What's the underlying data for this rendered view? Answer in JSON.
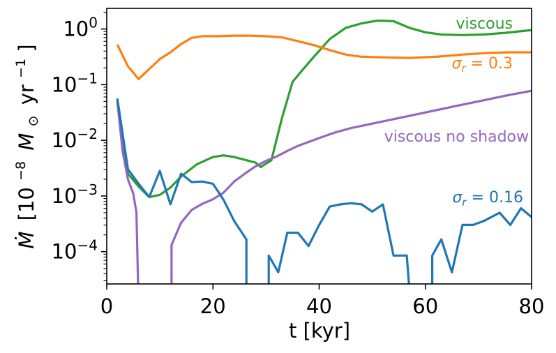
{
  "chart_data": {
    "type": "line",
    "title": "",
    "xlabel": "t [kyr]",
    "ylabel": "Ṁ [10⁻⁸ M⊙ yr⁻¹]",
    "ylabel_parts": {
      "dot": "Ṁ",
      "pre": "[10",
      "exp": "−8",
      "mid": "M",
      "sun": "⊙",
      "unit": "yr",
      "unit_exp": "−1",
      "close": "]"
    },
    "xlim": [
      0,
      80
    ],
    "ylim_log10": [
      -4.58,
      0.37
    ],
    "yscale": "log",
    "x_ticks": [
      {
        "value": 0,
        "label": "0"
      },
      {
        "value": 20,
        "label": "20"
      },
      {
        "value": 40,
        "label": "40"
      },
      {
        "value": 60,
        "label": "60"
      },
      {
        "value": 80,
        "label": "80"
      }
    ],
    "y_ticks": [
      {
        "exp10": 0,
        "base": "10",
        "exp": "0"
      },
      {
        "exp10": -1,
        "base": "10",
        "exp": "−1"
      },
      {
        "exp10": -2,
        "base": "10",
        "exp": "−2"
      },
      {
        "exp10": -3,
        "base": "10",
        "exp": "−3"
      },
      {
        "exp10": -4,
        "base": "10",
        "exp": "−4"
      }
    ],
    "series": [
      {
        "name": "viscous",
        "label": "viscous",
        "color": "#2ca02c",
        "points": [
          [
            2,
            -1.25
          ],
          [
            4,
            -2.6
          ],
          [
            6,
            -2.83
          ],
          [
            8,
            -3.02
          ],
          [
            10,
            -2.98
          ],
          [
            12,
            -2.85
          ],
          [
            14,
            -2.65
          ],
          [
            17,
            -2.43
          ],
          [
            20,
            -2.3
          ],
          [
            22,
            -2.27
          ],
          [
            24,
            -2.3
          ],
          [
            26,
            -2.35
          ],
          [
            28,
            -2.4
          ],
          [
            29,
            -2.48
          ],
          [
            31,
            -2.36
          ],
          [
            33,
            -1.6
          ],
          [
            35,
            -0.95
          ],
          [
            37,
            -0.72
          ],
          [
            39,
            -0.5
          ],
          [
            42,
            -0.18
          ],
          [
            45,
            0.02
          ],
          [
            48,
            0.1
          ],
          [
            51,
            0.15
          ],
          [
            54,
            0.14
          ],
          [
            57,
            0.02
          ],
          [
            60,
            -0.06
          ],
          [
            63,
            -0.1
          ],
          [
            67,
            -0.11
          ],
          [
            71,
            -0.1
          ],
          [
            75,
            -0.07
          ],
          [
            80,
            -0.02
          ]
        ]
      },
      {
        "name": "sigma_r_0.3",
        "label_prefix": "σ",
        "label_sub": "r",
        "label_suffix": " = 0.3",
        "color": "#ff7f0e",
        "points": [
          [
            2,
            -0.28
          ],
          [
            4,
            -0.67
          ],
          [
            6,
            -0.9
          ],
          [
            8,
            -0.72
          ],
          [
            10,
            -0.54
          ],
          [
            12,
            -0.42
          ],
          [
            14,
            -0.27
          ],
          [
            16,
            -0.16
          ],
          [
            18,
            -0.13
          ],
          [
            21,
            -0.13
          ],
          [
            24,
            -0.12
          ],
          [
            27,
            -0.12
          ],
          [
            30,
            -0.13
          ],
          [
            33,
            -0.15
          ],
          [
            36,
            -0.22
          ],
          [
            39,
            -0.29
          ],
          [
            42,
            -0.38
          ],
          [
            45,
            -0.46
          ],
          [
            48,
            -0.5
          ],
          [
            52,
            -0.51
          ],
          [
            57,
            -0.52
          ],
          [
            62,
            -0.5
          ],
          [
            67,
            -0.46
          ],
          [
            72,
            -0.43
          ],
          [
            76,
            -0.42
          ],
          [
            80,
            -0.42
          ]
        ]
      },
      {
        "name": "viscous_no_shadow",
        "label": "viscous no shadow",
        "color": "#9467bd",
        "points": [
          [
            2,
            -1.3
          ],
          [
            3,
            -2.2
          ],
          [
            4,
            -2.7
          ],
          [
            5,
            -2.96
          ],
          [
            5.6,
            -3.3
          ],
          [
            5.9,
            -4.6
          ]
        ],
        "segments": [
          [
            [
              2,
              -1.3
            ],
            [
              3,
              -2.2
            ],
            [
              4,
              -2.7
            ],
            [
              5,
              -2.96
            ],
            [
              5.6,
              -3.3
            ],
            [
              5.9,
              -4.6
            ]
          ],
          [
            [
              12.2,
              -4.6
            ],
            [
              12.2,
              -3.88
            ],
            [
              14,
              -3.48
            ],
            [
              16,
              -3.25
            ],
            [
              18,
              -3.14
            ],
            [
              20,
              -3.06
            ],
            [
              22,
              -2.94
            ],
            [
              24,
              -2.74
            ],
            [
              26,
              -2.6
            ],
            [
              28,
              -2.47
            ],
            [
              30,
              -2.37
            ],
            [
              32,
              -2.29
            ],
            [
              34,
              -2.19
            ],
            [
              36,
              -2.1
            ],
            [
              38,
              -2.03
            ],
            [
              40,
              -1.96
            ],
            [
              43,
              -1.86
            ],
            [
              46,
              -1.78
            ],
            [
              50,
              -1.7
            ],
            [
              54,
              -1.62
            ],
            [
              58,
              -1.54
            ],
            [
              62,
              -1.46
            ],
            [
              66,
              -1.38
            ],
            [
              70,
              -1.3
            ],
            [
              75,
              -1.2
            ],
            [
              80,
              -1.11
            ]
          ]
        ]
      },
      {
        "name": "sigma_r_0.16",
        "label_prefix": "σ",
        "label_sub": "r",
        "label_suffix": " = 0.16",
        "color": "#1f77b4",
        "segments": [
          [
            [
              2,
              -1.25
            ],
            [
              4,
              -2.52
            ],
            [
              6,
              -2.78
            ],
            [
              8,
              -3.02
            ],
            [
              10,
              -2.55
            ],
            [
              12,
              -3.15
            ],
            [
              14,
              -2.6
            ],
            [
              16,
              -2.75
            ],
            [
              18,
              -2.74
            ],
            [
              20,
              -2.78
            ],
            [
              22,
              -3.07
            ],
            [
              24,
              -3.45
            ],
            [
              26.3,
              -3.78
            ],
            [
              26.3,
              -4.6
            ]
          ],
          [
            [
              30.5,
              -4.6
            ],
            [
              30.5,
              -4.07
            ],
            [
              32.3,
              -4.37
            ],
            [
              34,
              -3.66
            ],
            [
              36,
              -3.66
            ],
            [
              38,
              -3.9
            ],
            [
              40,
              -3.52
            ],
            [
              42,
              -3.19
            ],
            [
              44,
              -3.15
            ],
            [
              46,
              -3.13
            ],
            [
              48,
              -3.15
            ],
            [
              50,
              -3.28
            ],
            [
              52,
              -3.15
            ],
            [
              54,
              -4.07
            ],
            [
              56.5,
              -4.07
            ],
            [
              56.9,
              -4.6
            ]
          ],
          [
            [
              61.3,
              -4.6
            ],
            [
              61.3,
              -4.07
            ],
            [
              63,
              -3.78
            ],
            [
              65,
              -4.37
            ],
            [
              67,
              -3.52
            ],
            [
              69,
              -3.52
            ],
            [
              71,
              -3.45
            ],
            [
              73,
              -3.35
            ],
            [
              74,
              -3.3
            ],
            [
              76,
              -3.52
            ],
            [
              78,
              -3.22
            ],
            [
              80,
              -3.38
            ]
          ]
        ]
      }
    ],
    "legend_placement": "inline labels near curves"
  }
}
